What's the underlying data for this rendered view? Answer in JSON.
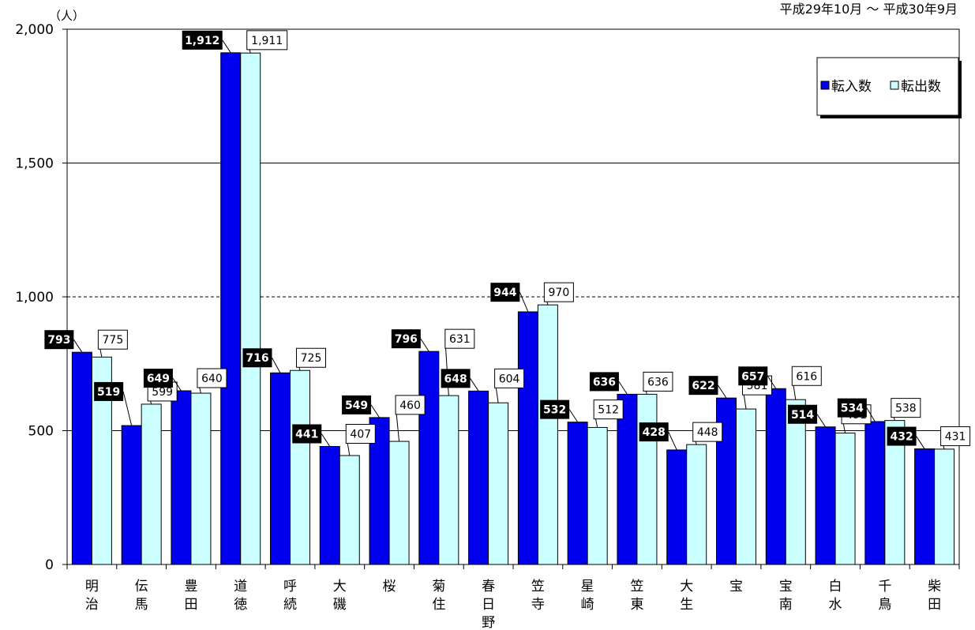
{
  "chart_data": {
    "type": "bar",
    "unit_label": "（人）",
    "period_label": "平成29年10月 ～ 平成30年9月",
    "categories": [
      "明治",
      "伝馬",
      "豊田",
      "道徳",
      "呼続",
      "大磯",
      "桜",
      "菊住",
      "春日野",
      "笠寺",
      "星崎",
      "笠東",
      "大生",
      "宝",
      "宝南",
      "白水",
      "千鳥",
      "柴田"
    ],
    "series": [
      {
        "name": "転入数",
        "color": "#0000ee",
        "values": [
          793,
          519,
          649,
          1912,
          716,
          441,
          549,
          796,
          648,
          944,
          532,
          636,
          428,
          622,
          657,
          514,
          534,
          432
        ]
      },
      {
        "name": "転出数",
        "color": "#ccffff",
        "values": [
          775,
          599,
          640,
          1911,
          725,
          407,
          460,
          631,
          604,
          970,
          512,
          636,
          448,
          581,
          616,
          491,
          538,
          431
        ]
      }
    ],
    "value_labels": {
      "in": [
        "793",
        "519",
        "649",
        "1,912",
        "716",
        "441",
        "549",
        "796",
        "648",
        "944",
        "532",
        "636",
        "428",
        "622",
        "657",
        "514",
        "534",
        "432"
      ],
      "out": [
        "775",
        "599",
        "640",
        "1,911",
        "725",
        "407",
        "460",
        "631",
        "604",
        "970",
        "512",
        "636",
        "448",
        "581",
        "616",
        "491",
        "538",
        "431"
      ]
    },
    "ylim": [
      0,
      2000
    ],
    "yticks": [
      0,
      500,
      1000,
      1500,
      2000
    ],
    "ytick_labels": [
      "0",
      "500",
      "1,000",
      "1,500",
      "2,000"
    ],
    "grid": true,
    "dashed_gridline": 1000,
    "legend_position": "top-right"
  }
}
